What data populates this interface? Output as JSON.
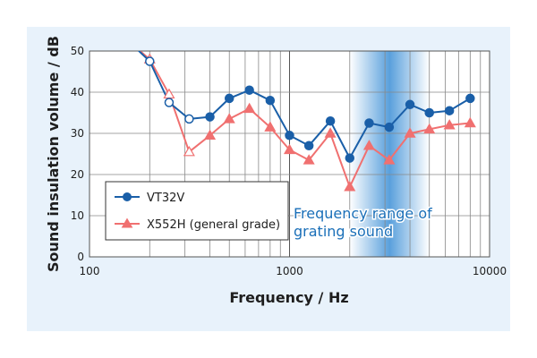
{
  "chart_data": {
    "type": "line",
    "xlabel": "Frequency / Hz",
    "ylabel": "Sound insulation volume / dB",
    "x_scale": "log",
    "xlim": [
      100,
      10000
    ],
    "ylim": [
      0,
      50
    ],
    "x_ticks": [
      "100",
      "1000",
      "10000"
    ],
    "y_ticks": [
      "0",
      "10",
      "20",
      "30",
      "40",
      "50"
    ],
    "grid": true,
    "legend_position": "bottom-left",
    "x": [
      160,
      200,
      250,
      315,
      400,
      500,
      630,
      800,
      1000,
      1250,
      1600,
      2000,
      2500,
      3150,
      4000,
      5000,
      6300,
      8000
    ],
    "series": [
      {
        "name": "VT32V",
        "color": "#1a5fa8",
        "marker": "circle",
        "values": [
          52,
          47.5,
          37.5,
          33.5,
          34,
          38.5,
          40.5,
          38,
          29.5,
          27,
          33,
          24,
          32.5,
          31.5,
          37,
          35,
          35.5,
          38.5
        ]
      },
      {
        "name": "X552H (general grade)",
        "color": "#f07070",
        "marker": "triangle",
        "values": [
          52,
          48,
          39.5,
          25.5,
          29.5,
          33.5,
          36,
          31.5,
          26,
          23.5,
          30,
          17,
          27,
          23.5,
          30,
          31,
          32,
          32.5
        ]
      }
    ],
    "annotation": {
      "lines": [
        "Frequency range of",
        "grating sound"
      ],
      "x_range": [
        2000,
        5000
      ],
      "color": "#1a6fb8"
    },
    "band_color": "#3c8fd6"
  }
}
